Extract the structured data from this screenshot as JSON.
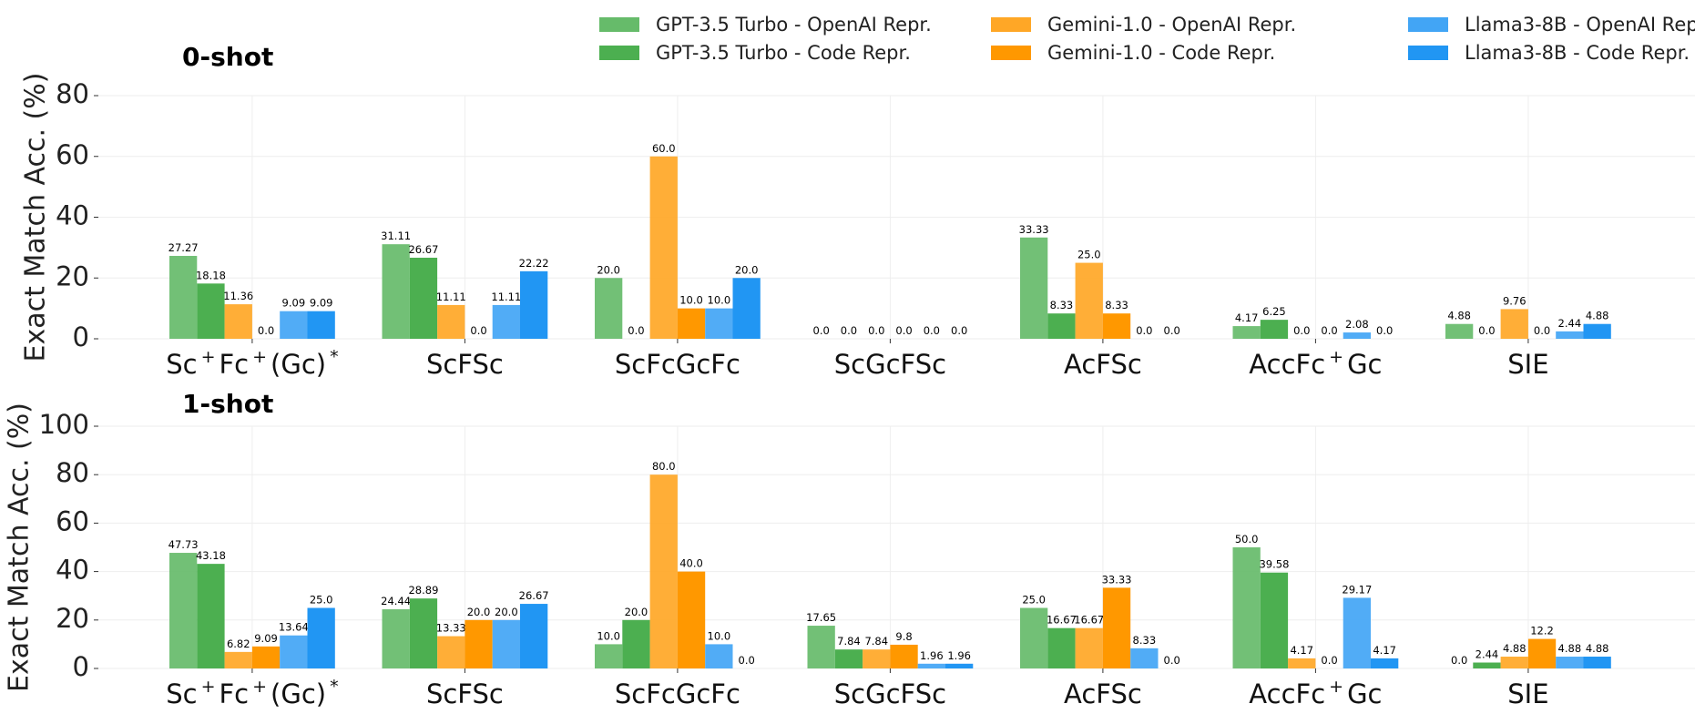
{
  "legend": {
    "items": [
      {
        "label": "GPT-3.5 Turbo - OpenAI Repr.",
        "color": "#66bb6a"
      },
      {
        "label": "GPT-3.5 Turbo - Code Repr.",
        "color": "#4caf50"
      },
      {
        "label": "Gemini-1.0 - OpenAI Repr.",
        "color": "#ffa726"
      },
      {
        "label": "Gemini-1.0 - Code Repr.",
        "color": "#ff9800"
      },
      {
        "label": "Llama3-8B - OpenAI Repr.",
        "color": "#42a5f5"
      },
      {
        "label": "Llama3-8B - Code Repr.",
        "color": "#2196f3"
      }
    ]
  },
  "chart_data": [
    {
      "type": "bar",
      "title": "0-shot",
      "ylabel": "Exact Match Acc. (%)",
      "ylim": [
        0,
        80
      ],
      "yticks": [
        0,
        20,
        40,
        60,
        80
      ],
      "grid": true,
      "categories": [
        {
          "base": "Sc",
          "parts": [
            "Sc",
            "+",
            "Fc",
            "+",
            "(Gc)",
            "*"
          ]
        },
        {
          "base": "ScFSc",
          "parts": [
            "ScFSc"
          ]
        },
        {
          "base": "ScFcGcFc",
          "parts": [
            "ScFcGcFc"
          ]
        },
        {
          "base": "ScGcFSc",
          "parts": [
            "ScGcFSc"
          ]
        },
        {
          "base": "AcFSc",
          "parts": [
            "AcFSc"
          ]
        },
        {
          "base": "AccFc",
          "parts": [
            "AccFc",
            "+",
            "Gc"
          ]
        },
        {
          "base": "SIE",
          "parts": [
            "SIE"
          ]
        }
      ],
      "series": [
        {
          "name": "GPT-3.5 Turbo - OpenAI Repr.",
          "values": [
            27.27,
            31.11,
            20.0,
            0.0,
            33.33,
            4.17,
            4.88
          ],
          "labels": [
            "27.27",
            "31.11",
            "20.0",
            "0.0",
            "33.33",
            "4.17",
            "4.88"
          ]
        },
        {
          "name": "GPT-3.5 Turbo - Code Repr.",
          "values": [
            18.18,
            26.67,
            0.0,
            0.0,
            8.33,
            6.25,
            0.0
          ],
          "labels": [
            "18.18",
            "26.67",
            "0.0",
            "0.0",
            "8.33",
            "6.25",
            "0.0"
          ]
        },
        {
          "name": "Gemini-1.0 - OpenAI Repr.",
          "values": [
            11.36,
            11.11,
            60.0,
            0.0,
            25.0,
            0.0,
            9.76
          ],
          "labels": [
            "11.36",
            "11.11",
            "60.0",
            "0.0",
            "25.0",
            "0.0",
            "9.76"
          ]
        },
        {
          "name": "Gemini-1.0 - Code Repr.",
          "values": [
            0.0,
            0.0,
            10.0,
            0.0,
            8.33,
            0.0,
            0.0
          ],
          "labels": [
            "0.0",
            "0.0",
            "10.0",
            "0.0",
            "8.33",
            "0.0",
            "0.0"
          ]
        },
        {
          "name": "Llama3-8B - OpenAI Repr.",
          "values": [
            9.09,
            11.11,
            10.0,
            0.0,
            0.0,
            2.08,
            2.44
          ],
          "labels": [
            "9.09",
            "11.11",
            "10.0",
            "0.0",
            "0.0",
            "2.08",
            "2.44"
          ]
        },
        {
          "name": "Llama3-8B - Code Repr.",
          "values": [
            9.09,
            22.22,
            20.0,
            0.0,
            0.0,
            0.0,
            4.88
          ],
          "labels": [
            "9.09",
            "22.22",
            "20.0",
            "0.0",
            "0.0",
            "0.0",
            "4.88"
          ]
        }
      ]
    },
    {
      "type": "bar",
      "title": "1-shot",
      "ylabel": "Exact Match Acc. (%)",
      "ylim": [
        0,
        100
      ],
      "yticks": [
        0,
        20,
        40,
        60,
        80,
        100
      ],
      "grid": true,
      "categories": [
        {
          "base": "Sc",
          "parts": [
            "Sc",
            "+",
            "Fc",
            "+",
            "(Gc)",
            "*"
          ]
        },
        {
          "base": "ScFSc",
          "parts": [
            "ScFSc"
          ]
        },
        {
          "base": "ScFcGcFc",
          "parts": [
            "ScFcGcFc"
          ]
        },
        {
          "base": "ScGcFSc",
          "parts": [
            "ScGcFSc"
          ]
        },
        {
          "base": "AcFSc",
          "parts": [
            "AcFSc"
          ]
        },
        {
          "base": "AccFc",
          "parts": [
            "AccFc",
            "+",
            "Gc"
          ]
        },
        {
          "base": "SIE",
          "parts": [
            "SIE"
          ]
        }
      ],
      "series": [
        {
          "name": "GPT-3.5 Turbo - OpenAI Repr.",
          "values": [
            47.73,
            24.44,
            10.0,
            17.65,
            25.0,
            50.0,
            0.0
          ],
          "labels": [
            "47.73",
            "24.44",
            "10.0",
            "17.65",
            "25.0",
            "50.0",
            "0.0"
          ]
        },
        {
          "name": "GPT-3.5 Turbo - Code Repr.",
          "values": [
            43.18,
            28.89,
            20.0,
            7.84,
            16.67,
            39.58,
            2.44
          ],
          "labels": [
            "43.18",
            "28.89",
            "20.0",
            "7.84",
            "16.67",
            "39.58",
            "2.44"
          ]
        },
        {
          "name": "Gemini-1.0 - OpenAI Repr.",
          "values": [
            6.82,
            13.33,
            80.0,
            7.84,
            16.67,
            4.17,
            4.88
          ],
          "labels": [
            "6.82",
            "13.33",
            "80.0",
            "7.84",
            "16.67",
            "4.17",
            "4.88"
          ]
        },
        {
          "name": "Gemini-1.0 - Code Repr.",
          "values": [
            9.09,
            20.0,
            40.0,
            9.8,
            33.33,
            0.0,
            12.2
          ],
          "labels": [
            "9.09",
            "20.0",
            "40.0",
            "9.8",
            "33.33",
            "0.0",
            "12.2"
          ]
        },
        {
          "name": "Llama3-8B - OpenAI Repr.",
          "values": [
            13.64,
            20.0,
            10.0,
            1.96,
            8.33,
            29.17,
            4.88
          ],
          "labels": [
            "13.64",
            "20.0",
            "10.0",
            "1.96",
            "8.33",
            "29.17",
            "4.88"
          ]
        },
        {
          "name": "Llama3-8B - Code Repr.",
          "values": [
            25.0,
            26.67,
            0.0,
            1.96,
            0.0,
            4.17,
            4.88
          ],
          "labels": [
            "25.0",
            "26.67",
            "0.0",
            "1.96",
            "0.0",
            "4.17",
            "4.88"
          ]
        }
      ]
    }
  ]
}
